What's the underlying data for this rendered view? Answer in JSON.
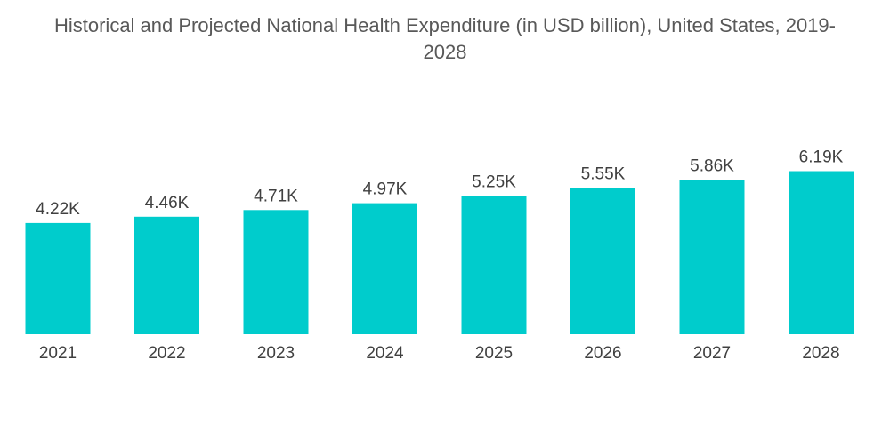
{
  "chart_data": {
    "type": "bar",
    "title": "Historical and Projected National Health Expenditure (in USD billion), United States, 2019-2028",
    "categories": [
      "2021",
      "2022",
      "2023",
      "2024",
      "2025",
      "2026",
      "2027",
      "2028"
    ],
    "values": [
      4220,
      4460,
      4710,
      4970,
      5250,
      5550,
      5860,
      6190
    ],
    "value_labels": [
      "4.22K",
      "4.46K",
      "4.71K",
      "4.97K",
      "5.25K",
      "5.55K",
      "5.86K",
      "6.19K"
    ],
    "xlabel": "",
    "ylabel": "",
    "bar_color": "#00cccc",
    "grid": false,
    "legend": "none"
  }
}
